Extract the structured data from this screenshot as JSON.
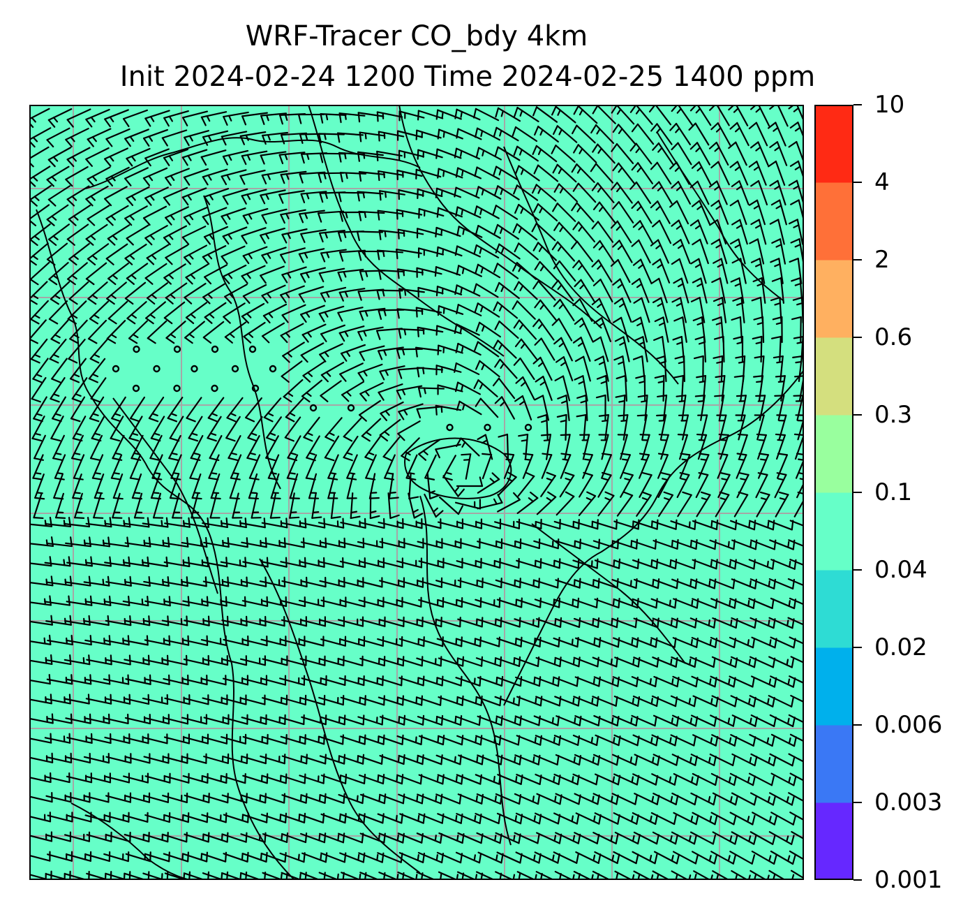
{
  "title_line1": "WRF-Tracer CO_bdy 4km",
  "title_line2": "Init 2024-02-24 1200 Time 2024-02-25 1400 ppm",
  "field_fill_color": "#66ffc8",
  "grid_color": "#a6a6a6",
  "coastline_color": "#000000",
  "colorbar": {
    "levels": [
      "0.001",
      "0.003",
      "0.006",
      "0.02",
      "0.04",
      "0.1",
      "0.3",
      "0.6",
      "2",
      "4",
      "10"
    ],
    "colors": [
      "#6628ff",
      "#3a78f5",
      "#00b0ec",
      "#2edcd4",
      "#66ffc8",
      "#99ff9e",
      "#d4df7e",
      "#ffb060",
      "#ff7038",
      "#ff2a14"
    ]
  },
  "map_layers": [
    "tracer-concentration-fill",
    "wind-barbs",
    "calm-wind-circles",
    "coastlines-and-borders",
    "lat-lon-gridlines"
  ]
}
